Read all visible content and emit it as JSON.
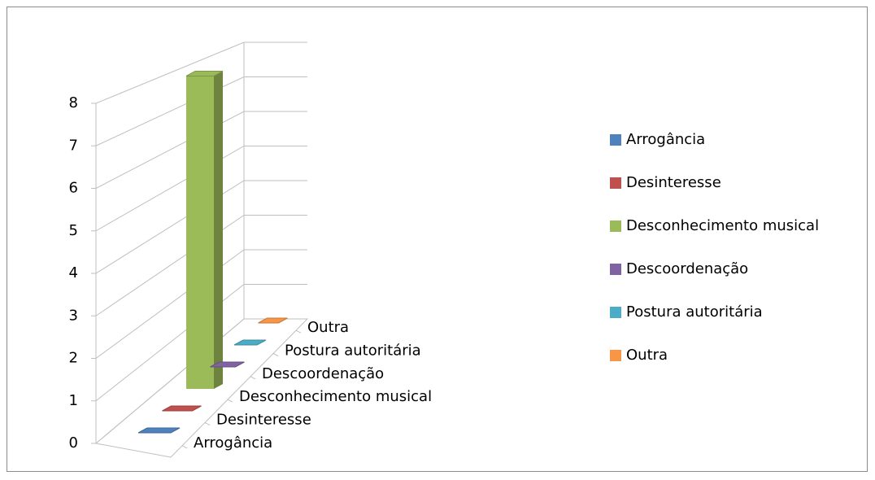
{
  "chart_data": {
    "type": "bar3d",
    "categories": [
      "Arrogância",
      "Desinteresse",
      "Desconhecimento musical",
      "Descoordenação",
      "Postura autoritária",
      "Outra"
    ],
    "values": [
      0,
      0,
      8,
      0,
      0,
      0
    ],
    "colors": [
      "#4f81bd",
      "#c0504d",
      "#9bbb59",
      "#8064a2",
      "#4bacc6",
      "#f79646"
    ],
    "ylim": [
      0,
      8
    ],
    "yticks": [
      0,
      1,
      2,
      3,
      4,
      5,
      6,
      7,
      8
    ],
    "grid": true,
    "legend": "right"
  }
}
